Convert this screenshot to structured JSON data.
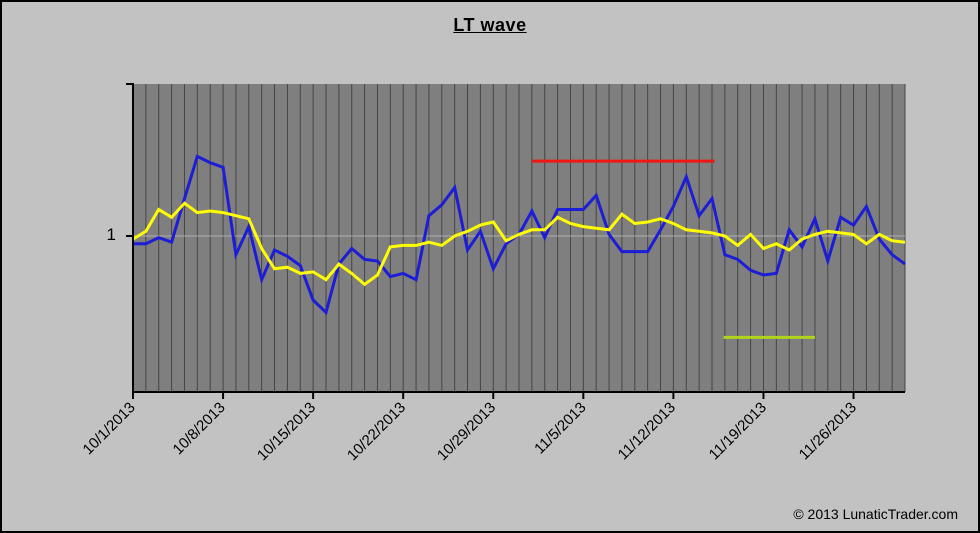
{
  "footer": {
    "copyright": "© 2013 LunaticTrader.com"
  },
  "chart_data": {
    "type": "line",
    "title": "LT wave",
    "y_tick_label": "1",
    "ylim": [
      0,
      1.97
    ],
    "y_gridline_at": 1,
    "grid": "vertical-daily",
    "legend": "none",
    "x_tick_labels": [
      "10/1/2013",
      "10/8/2013",
      "10/15/2013",
      "10/22/2013",
      "10/29/2013",
      "11/5/2013",
      "11/12/2013",
      "11/19/2013",
      "11/26/2013"
    ],
    "x_tick_days": [
      0,
      7,
      14,
      21,
      28,
      35,
      42,
      49,
      56
    ],
    "x_dates": [
      "10/1/2013",
      "10/2/2013",
      "10/3/2013",
      "10/4/2013",
      "10/5/2013",
      "10/6/2013",
      "10/7/2013",
      "10/8/2013",
      "10/9/2013",
      "10/10/2013",
      "10/11/2013",
      "10/12/2013",
      "10/13/2013",
      "10/14/2013",
      "10/15/2013",
      "10/16/2013",
      "10/17/2013",
      "10/18/2013",
      "10/19/2013",
      "10/20/2013",
      "10/21/2013",
      "10/22/2013",
      "10/23/2013",
      "10/24/2013",
      "10/25/2013",
      "10/26/2013",
      "10/27/2013",
      "10/28/2013",
      "10/29/2013",
      "10/30/2013",
      "10/31/2013",
      "11/1/2013",
      "11/2/2013",
      "11/3/2013",
      "11/4/2013",
      "11/5/2013",
      "11/6/2013",
      "11/7/2013",
      "11/8/2013",
      "11/9/2013",
      "11/10/2013",
      "11/11/2013",
      "11/12/2013",
      "11/13/2013",
      "11/14/2013",
      "11/15/2013",
      "11/16/2013",
      "11/17/2013",
      "11/18/2013",
      "11/19/2013",
      "11/20/2013",
      "11/21/2013",
      "11/22/2013",
      "11/23/2013",
      "11/24/2013",
      "11/25/2013",
      "11/26/2013",
      "11/27/2013",
      "11/28/2013",
      "11/29/2013",
      "11/30/2013"
    ],
    "series": [
      {
        "name": "daily-wave",
        "color": "#1d1dd6",
        "values": [
          0.95,
          0.95,
          0.99,
          0.96,
          1.24,
          1.51,
          1.47,
          1.44,
          0.88,
          1.06,
          0.72,
          0.91,
          0.87,
          0.81,
          0.59,
          0.51,
          0.82,
          0.92,
          0.85,
          0.84,
          0.74,
          0.76,
          0.72,
          1.13,
          1.2,
          1.31,
          0.91,
          1.03,
          0.79,
          0.95,
          1.01,
          1.16,
          0.99,
          1.17,
          1.17,
          1.17,
          1.26,
          1.01,
          0.9,
          0.9,
          0.9,
          1.04,
          1.19,
          1.38,
          1.13,
          1.24,
          0.88,
          0.85,
          0.78,
          0.75,
          0.76,
          1.04,
          0.93,
          1.11,
          0.84,
          1.12,
          1.07,
          1.19,
          0.98,
          0.88,
          0.82
        ]
      },
      {
        "name": "smoothed-wave",
        "color": "#ffff00",
        "values": [
          0.98,
          1.03,
          1.17,
          1.12,
          1.21,
          1.15,
          1.16,
          1.15,
          1.13,
          1.11,
          0.92,
          0.79,
          0.8,
          0.76,
          0.77,
          0.72,
          0.82,
          0.76,
          0.69,
          0.75,
          0.93,
          0.94,
          0.94,
          0.96,
          0.94,
          1.0,
          1.03,
          1.07,
          1.09,
          0.97,
          1.01,
          1.04,
          1.04,
          1.12,
          1.08,
          1.06,
          1.05,
          1.04,
          1.14,
          1.08,
          1.09,
          1.11,
          1.08,
          1.04,
          1.03,
          1.02,
          1.0,
          0.94,
          1.01,
          0.92,
          0.95,
          0.91,
          0.98,
          1.01,
          1.03,
          1.02,
          1.01,
          0.95,
          1.01,
          0.97,
          0.96
        ]
      }
    ],
    "annotations": [
      {
        "name": "red-highlight-line",
        "color": "#f21515",
        "value": 1.48,
        "day_start": 31,
        "day_end": 45.2,
        "date_start": "11/1/2013",
        "date_end": "11/15/2013"
      },
      {
        "name": "green-highlight-line",
        "color": "#b0d31c",
        "value": 0.35,
        "day_start": 45.9,
        "day_end": 53,
        "date_start": "11/16/2013",
        "date_end": "11/23/2013"
      }
    ],
    "colors": {
      "plot_bg": "#7f7f7f",
      "outer_bg": "#c2c2c2",
      "day_gridline": "#454545",
      "unit_gridline": "#b8b8b8",
      "axis": "#000000"
    }
  }
}
